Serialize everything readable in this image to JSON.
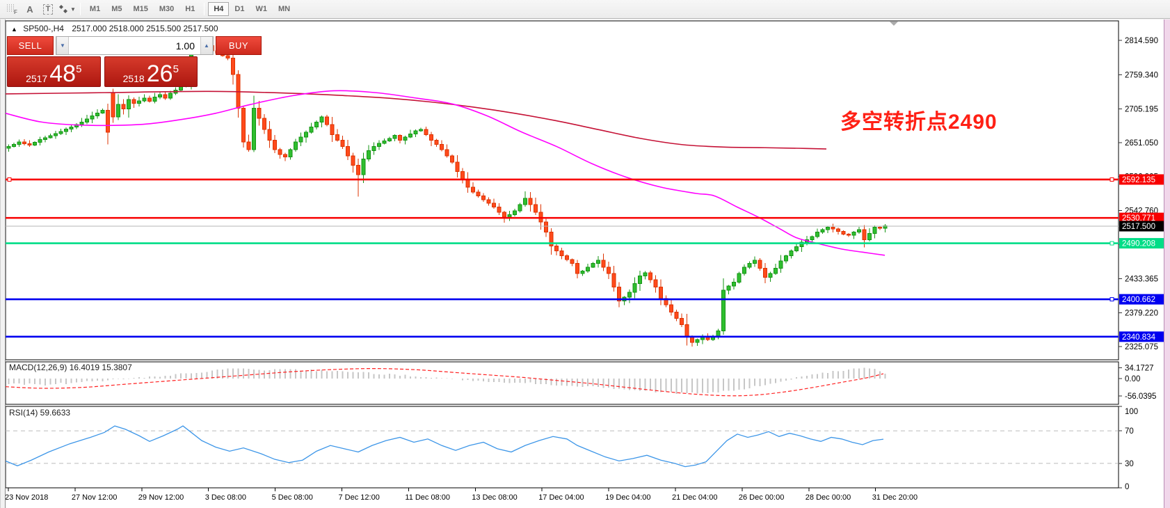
{
  "toolbar": {
    "tools": [
      {
        "name": "fibonacci-tool",
        "glyph": "F"
      },
      {
        "name": "text-label-tool",
        "glyph": "A"
      },
      {
        "name": "text-tool",
        "glyph": "T"
      },
      {
        "name": "arrows-tool",
        "glyph": ""
      }
    ],
    "timeframes": [
      {
        "label": "M1",
        "active": false
      },
      {
        "label": "M5",
        "active": false
      },
      {
        "label": "M15",
        "active": false
      },
      {
        "label": "M30",
        "active": false
      },
      {
        "label": "H1",
        "active": false
      },
      {
        "label": "H4",
        "active": true
      },
      {
        "label": "D1",
        "active": false
      },
      {
        "label": "W1",
        "active": false
      },
      {
        "label": "MN",
        "active": false
      }
    ]
  },
  "chart_header": {
    "symbol": "SP500-,H4",
    "ohlc": "2517.000 2518.000 2515.500 2517.500"
  },
  "trade_panel": {
    "sell_label": "SELL",
    "buy_label": "BUY",
    "volume": "1.00",
    "sell_price": {
      "big_figure": "2517",
      "pips": "48",
      "point": "5"
    },
    "buy_price": {
      "big_figure": "2518",
      "pips": "26",
      "point": "5"
    }
  },
  "annotation": {
    "text": "多空转折点2490",
    "color": "#ff2015"
  },
  "indicators": {
    "macd_label": "MACD(12,26,9) 16.4019 15.3807",
    "rsi_label": "RSI(14) 59.6633"
  },
  "chart_data": {
    "type": "candlestick",
    "symbol": "SP500-",
    "period": "H4",
    "ohlc_current": {
      "open": 2517.0,
      "high": 2518.0,
      "low": 2515.5,
      "close": 2517.5
    },
    "colors": {
      "bull_fill": "#2fbe2f",
      "bull_border": "#149414",
      "bear_fill": "#ff4a1c",
      "bear_border": "#dd3300",
      "ma_fast": "#ff00ff",
      "ma_slow": "#c51236",
      "line_red": "#f80000",
      "line_green": "#00dd87",
      "line_blue": "#0000f0",
      "current_price_line": "#b4b4b4",
      "current_price_tag": "#000000",
      "macd_hist": "#c6c6c6",
      "macd_signal": "#ff2020",
      "rsi_line": "#3d96e8"
    },
    "price_axis_ticks": [
      2814.59,
      2759.34,
      2705.195,
      2651.05,
      2596.905,
      2542.76,
      2488.615,
      2433.365,
      2379.22,
      2325.075
    ],
    "horizontal_lines": [
      {
        "price": 2592.135,
        "color": "#f80000",
        "handles": [
          "left",
          "right"
        ]
      },
      {
        "price": 2530.771,
        "color": "#f80000",
        "handles": []
      },
      {
        "price": 2490.208,
        "color": "#00dd87",
        "handles": [
          "right"
        ]
      },
      {
        "price": 2400.662,
        "color": "#0000f0",
        "handles": [
          "right"
        ]
      },
      {
        "price": 2340.834,
        "color": "#0000f0",
        "handles": []
      }
    ],
    "current_price": 2517.5,
    "time_labels": [
      "23 Nov 2018",
      "27 Nov 12:00",
      "29 Nov 12:00",
      "3 Dec 08:00",
      "5 Dec 08:00",
      "7 Dec 12:00",
      "11 Dec 08:00",
      "13 Dec 08:00",
      "17 Dec 04:00",
      "19 Dec 04:00",
      "21 Dec 04:00",
      "26 Dec 00:00",
      "28 Dec 00:00",
      "31 Dec 20:00"
    ],
    "closes": [
      [
        0,
        2645
      ],
      [
        2,
        2652
      ],
      [
        4,
        2647
      ],
      [
        6,
        2656
      ],
      [
        8,
        2662
      ],
      [
        10,
        2669
      ],
      [
        12,
        2676
      ],
      [
        14,
        2684
      ],
      [
        16,
        2694
      ],
      [
        18,
        2703
      ],
      [
        19,
        2668
      ],
      [
        20,
        2692
      ],
      [
        21,
        2712
      ],
      [
        22,
        2705
      ],
      [
        23,
        2720
      ],
      [
        24,
        2714
      ],
      [
        25,
        2718
      ],
      [
        26,
        2722
      ],
      [
        27,
        2717
      ],
      [
        28,
        2724
      ],
      [
        29,
        2728
      ],
      [
        30,
        2722
      ],
      [
        31,
        2730
      ],
      [
        32,
        2735
      ],
      [
        33,
        2742
      ],
      [
        34,
        2742
      ],
      [
        35,
        2800
      ],
      [
        36,
        2808
      ],
      [
        37,
        2802
      ],
      [
        38,
        2806
      ],
      [
        39,
        2798
      ],
      [
        40,
        2794
      ],
      [
        41,
        2790
      ],
      [
        42,
        2786
      ],
      [
        43,
        2760
      ],
      [
        44,
        2706
      ],
      [
        45,
        2652
      ],
      [
        46,
        2640
      ],
      [
        47,
        2706
      ],
      [
        48,
        2690
      ],
      [
        49,
        2672
      ],
      [
        50,
        2655
      ],
      [
        51,
        2640
      ],
      [
        52,
        2632
      ],
      [
        53,
        2628
      ],
      [
        54,
        2640
      ],
      [
        55,
        2652
      ],
      [
        56,
        2660
      ],
      [
        57,
        2668
      ],
      [
        58,
        2676
      ],
      [
        59,
        2684
      ],
      [
        60,
        2692
      ],
      [
        61,
        2680
      ],
      [
        62,
        2664
      ],
      [
        63,
        2655
      ],
      [
        64,
        2645
      ],
      [
        65,
        2630
      ],
      [
        66,
        2615
      ],
      [
        67,
        2600
      ],
      [
        68,
        2625
      ],
      [
        69,
        2638
      ],
      [
        70,
        2645
      ],
      [
        71,
        2650
      ],
      [
        72,
        2654
      ],
      [
        73,
        2658
      ],
      [
        74,
        2663
      ],
      [
        75,
        2655
      ],
      [
        76,
        2660
      ],
      [
        77,
        2665
      ],
      [
        78,
        2670
      ],
      [
        79,
        2672
      ],
      [
        80,
        2664
      ],
      [
        81,
        2655
      ],
      [
        82,
        2648
      ],
      [
        83,
        2640
      ],
      [
        84,
        2630
      ],
      [
        85,
        2620
      ],
      [
        86,
        2605
      ],
      [
        87,
        2592
      ],
      [
        88,
        2580
      ],
      [
        89,
        2572
      ],
      [
        90,
        2566
      ],
      [
        91,
        2560
      ],
      [
        92,
        2554
      ],
      [
        93,
        2548
      ],
      [
        94,
        2540
      ],
      [
        95,
        2532
      ],
      [
        96,
        2536
      ],
      [
        97,
        2542
      ],
      [
        98,
        2552
      ],
      [
        99,
        2562
      ],
      [
        100,
        2552
      ],
      [
        101,
        2540
      ],
      [
        102,
        2524
      ],
      [
        103,
        2508
      ],
      [
        104,
        2486
      ],
      [
        105,
        2478
      ],
      [
        106,
        2470
      ],
      [
        107,
        2464
      ],
      [
        108,
        2458
      ],
      [
        109,
        2442
      ],
      [
        110,
        2446
      ],
      [
        111,
        2452
      ],
      [
        112,
        2458
      ],
      [
        113,
        2463
      ],
      [
        114,
        2452
      ],
      [
        115,
        2442
      ],
      [
        116,
        2420
      ],
      [
        117,
        2398
      ],
      [
        118,
        2404
      ],
      [
        119,
        2412
      ],
      [
        120,
        2426
      ],
      [
        121,
        2438
      ],
      [
        122,
        2443
      ],
      [
        123,
        2432
      ],
      [
        124,
        2420
      ],
      [
        125,
        2402
      ],
      [
        126,
        2392
      ],
      [
        127,
        2380
      ],
      [
        128,
        2370
      ],
      [
        129,
        2360
      ],
      [
        130,
        2340
      ],
      [
        131,
        2332
      ],
      [
        132,
        2336
      ],
      [
        133,
        2340
      ],
      [
        134,
        2336
      ],
      [
        135,
        2342
      ],
      [
        136,
        2350
      ],
      [
        137,
        2415
      ],
      [
        138,
        2422
      ],
      [
        139,
        2428
      ],
      [
        140,
        2442
      ],
      [
        141,
        2452
      ],
      [
        142,
        2458
      ],
      [
        143,
        2463
      ],
      [
        144,
        2450
      ],
      [
        145,
        2436
      ],
      [
        146,
        2442
      ],
      [
        147,
        2450
      ],
      [
        148,
        2462
      ],
      [
        149,
        2470
      ],
      [
        150,
        2478
      ],
      [
        151,
        2485
      ],
      [
        152,
        2492
      ],
      [
        153,
        2496
      ],
      [
        154,
        2501
      ],
      [
        155,
        2508
      ],
      [
        156,
        2512
      ],
      [
        157,
        2516
      ],
      [
        158,
        2513
      ],
      [
        159,
        2509
      ],
      [
        160,
        2505
      ],
      [
        161,
        2503
      ],
      [
        162,
        2508
      ],
      [
        163,
        2512
      ],
      [
        164,
        2496
      ],
      [
        165,
        2506
      ],
      [
        166,
        2516
      ],
      [
        167,
        2514
      ],
      [
        168,
        2518
      ]
    ],
    "candle_overrides": [
      {
        "i": 20,
        "open": 2731,
        "high": 2737
      },
      {
        "i": 35,
        "high": 2812
      },
      {
        "i": 36,
        "high": 2815
      },
      {
        "i": 38,
        "high": 2813
      },
      {
        "i": 47,
        "low": 2636
      },
      {
        "i": 67,
        "low": 2565
      },
      {
        "i": 104,
        "low": 2472
      },
      {
        "i": 117,
        "low": 2388
      },
      {
        "i": 130,
        "low": 2327
      },
      {
        "i": 131,
        "low": 2325
      },
      {
        "i": 133,
        "low": 2329
      },
      {
        "i": 137,
        "low": 2344
      }
    ],
    "ma_fast": [
      [
        8,
        2698
      ],
      [
        60,
        2684
      ],
      [
        120,
        2679
      ],
      [
        200,
        2680
      ],
      [
        260,
        2688
      ],
      [
        310,
        2698
      ],
      [
        360,
        2712
      ],
      [
        420,
        2726
      ],
      [
        480,
        2734
      ],
      [
        540,
        2731
      ],
      [
        600,
        2722
      ],
      [
        650,
        2713
      ],
      [
        700,
        2694
      ],
      [
        750,
        2668
      ],
      [
        800,
        2645
      ],
      [
        850,
        2618
      ],
      [
        900,
        2596
      ],
      [
        950,
        2580
      ],
      [
        1000,
        2570
      ],
      [
        1027,
        2566
      ],
      [
        1060,
        2548
      ],
      [
        1090,
        2532
      ],
      [
        1120,
        2514
      ],
      [
        1145,
        2499
      ],
      [
        1175,
        2490
      ],
      [
        1210,
        2481
      ],
      [
        1240,
        2476
      ],
      [
        1272,
        2471
      ]
    ],
    "ma_slow": [
      [
        8,
        2729
      ],
      [
        150,
        2731
      ],
      [
        300,
        2733
      ],
      [
        420,
        2730
      ],
      [
        500,
        2726
      ],
      [
        560,
        2722
      ],
      [
        620,
        2716
      ],
      [
        680,
        2708
      ],
      [
        740,
        2698
      ],
      [
        800,
        2686
      ],
      [
        860,
        2672
      ],
      [
        920,
        2658
      ],
      [
        980,
        2648
      ],
      [
        1040,
        2644
      ],
      [
        1100,
        2643
      ],
      [
        1150,
        2642
      ],
      [
        1188,
        2641
      ]
    ],
    "macd": {
      "axis_labels": [
        "34.1727",
        "0.00",
        "-56.0395"
      ],
      "axis_values": [
        34.1727,
        0.0,
        -56.0395
      ],
      "signal": [
        [
          8,
          -26
        ],
        [
          60,
          -31
        ],
        [
          120,
          -28
        ],
        [
          180,
          -18
        ],
        [
          240,
          -8
        ],
        [
          300,
          2
        ],
        [
          360,
          12
        ],
        [
          420,
          22
        ],
        [
          480,
          29
        ],
        [
          540,
          32
        ],
        [
          600,
          28
        ],
        [
          650,
          20
        ],
        [
          700,
          12
        ],
        [
          750,
          4
        ],
        [
          800,
          -6
        ],
        [
          850,
          -16
        ],
        [
          900,
          -28
        ],
        [
          950,
          -40
        ],
        [
          1000,
          -50
        ],
        [
          1050,
          -55
        ],
        [
          1090,
          -52
        ],
        [
          1130,
          -42
        ],
        [
          1170,
          -28
        ],
        [
          1210,
          -12
        ],
        [
          1245,
          2
        ],
        [
          1270,
          15.4
        ]
      ],
      "histogram": [
        [
          8,
          -15
        ],
        [
          60,
          -20
        ],
        [
          120,
          -10
        ],
        [
          180,
          0
        ],
        [
          240,
          10
        ],
        [
          300,
          22
        ],
        [
          330,
          34
        ],
        [
          370,
          28
        ],
        [
          420,
          30
        ],
        [
          470,
          24
        ],
        [
          520,
          18
        ],
        [
          570,
          12
        ],
        [
          620,
          4
        ],
        [
          670,
          -6
        ],
        [
          720,
          -12
        ],
        [
          770,
          -16
        ],
        [
          820,
          -22
        ],
        [
          870,
          -30
        ],
        [
          920,
          -38
        ],
        [
          970,
          -46
        ],
        [
          1010,
          -48
        ],
        [
          1050,
          -38
        ],
        [
          1090,
          -22
        ],
        [
          1130,
          -4
        ],
        [
          1170,
          14
        ],
        [
          1200,
          24
        ],
        [
          1235,
          32
        ],
        [
          1258,
          30
        ],
        [
          1270,
          16.4
        ]
      ]
    },
    "rsi": {
      "axis_labels": [
        "100",
        "70",
        "30",
        "0"
      ],
      "axis_values": [
        100,
        70,
        30,
        0
      ],
      "dashed_levels": [
        70,
        30
      ],
      "line": [
        [
          8,
          33
        ],
        [
          25,
          27
        ],
        [
          45,
          34
        ],
        [
          70,
          44
        ],
        [
          100,
          54
        ],
        [
          130,
          62
        ],
        [
          150,
          68
        ],
        [
          165,
          76
        ],
        [
          180,
          72
        ],
        [
          200,
          64
        ],
        [
          215,
          57
        ],
        [
          235,
          64
        ],
        [
          255,
          72
        ],
        [
          263,
          76
        ],
        [
          275,
          68
        ],
        [
          290,
          58
        ],
        [
          310,
          50
        ],
        [
          330,
          45
        ],
        [
          350,
          49
        ],
        [
          375,
          42
        ],
        [
          395,
          35
        ],
        [
          415,
          31
        ],
        [
          435,
          34
        ],
        [
          455,
          45
        ],
        [
          475,
          52
        ],
        [
          495,
          48
        ],
        [
          515,
          44
        ],
        [
          535,
          52
        ],
        [
          555,
          58
        ],
        [
          575,
          62
        ],
        [
          595,
          56
        ],
        [
          615,
          60
        ],
        [
          635,
          52
        ],
        [
          655,
          46
        ],
        [
          675,
          52
        ],
        [
          695,
          56
        ],
        [
          715,
          48
        ],
        [
          735,
          44
        ],
        [
          755,
          52
        ],
        [
          775,
          58
        ],
        [
          795,
          63
        ],
        [
          815,
          60
        ],
        [
          830,
          52
        ],
        [
          850,
          45
        ],
        [
          870,
          38
        ],
        [
          890,
          33
        ],
        [
          910,
          36
        ],
        [
          930,
          40
        ],
        [
          950,
          34
        ],
        [
          970,
          30
        ],
        [
          985,
          26
        ],
        [
          1000,
          28
        ],
        [
          1015,
          32
        ],
        [
          1030,
          45
        ],
        [
          1045,
          58
        ],
        [
          1060,
          66
        ],
        [
          1075,
          62
        ],
        [
          1090,
          65
        ],
        [
          1105,
          69
        ],
        [
          1120,
          63
        ],
        [
          1135,
          67
        ],
        [
          1150,
          64
        ],
        [
          1165,
          60
        ],
        [
          1180,
          57
        ],
        [
          1195,
          62
        ],
        [
          1210,
          60
        ],
        [
          1225,
          56
        ],
        [
          1240,
          53
        ],
        [
          1255,
          58
        ],
        [
          1270,
          59.7
        ]
      ]
    }
  }
}
